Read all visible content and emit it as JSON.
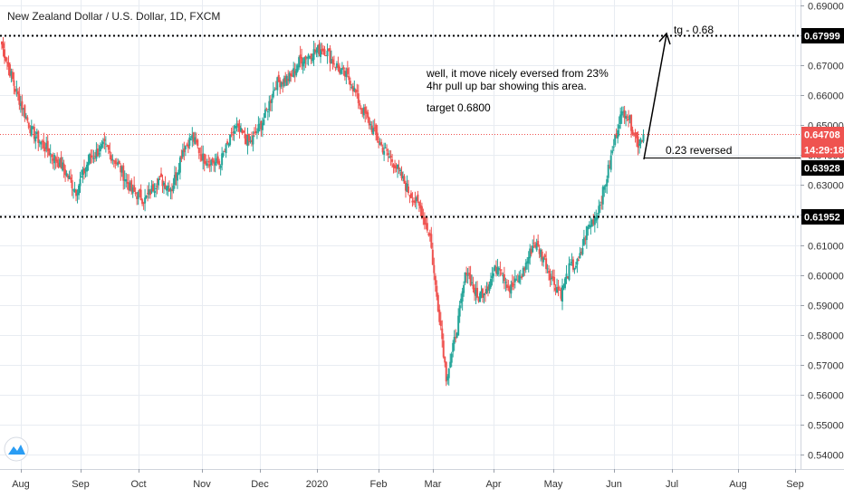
{
  "title": "New Zealand Dollar / U.S. Dollar, 1D, FXCM",
  "colors": {
    "up": "#26a69a",
    "down": "#ef5350",
    "grid": "#e8ecf2",
    "price_line": "#ef5350",
    "dark": "#000000",
    "logo": "#2a9df4"
  },
  "annotations": {
    "note_line1": "well, it move nicely eversed from 23%",
    "note_line2": "4hr pull up bar showing this area.",
    "note_line3": "target 0.6800",
    "target_label": "tg - 0.68",
    "reversed_label": "0.23 reversed"
  },
  "price_labels": {
    "resistance": "0.67999",
    "current": "0.64708",
    "countdown": "14:29:18",
    "level_023": "0.63928",
    "support": "0.61952"
  },
  "logo_icon": "tradingview-logo-icon",
  "chart_data": {
    "type": "candlestick",
    "title": "New Zealand Dollar / U.S. Dollar, 1D, FXCM",
    "y_ticks": [
      0.69,
      0.68,
      0.67,
      0.66,
      0.65,
      0.64,
      0.63,
      0.62,
      0.61,
      0.6,
      0.59,
      0.58,
      0.57,
      0.56,
      0.55,
      0.54
    ],
    "y_tick_labels": [
      "0.69000",
      "0.68000",
      "0.67000",
      "0.66000",
      "0.65000",
      "0.64000",
      "0.63000",
      "0.62000",
      "0.61000",
      "0.60000",
      "0.59000",
      "0.58000",
      "0.57000",
      "0.56000",
      "0.55000",
      "0.54000"
    ],
    "ylim": [
      0.5365,
      0.6915
    ],
    "x_labels": [
      "Aug",
      "Sep",
      "Oct",
      "Nov",
      "Dec",
      "2020",
      "Feb",
      "Mar",
      "Apr",
      "May",
      "Jun",
      "Jul",
      "Aug",
      "Sep"
    ],
    "horizontal_levels": [
      0.67999,
      0.61952
    ],
    "current_price": 0.64708,
    "reversal_level": 0.63928,
    "price_path": [
      [
        0,
        0.677
      ],
      [
        10,
        0.662
      ],
      [
        22,
        0.648
      ],
      [
        35,
        0.641
      ],
      [
        45,
        0.636
      ],
      [
        55,
        0.628
      ],
      [
        65,
        0.639
      ],
      [
        76,
        0.643
      ],
      [
        86,
        0.637
      ],
      [
        96,
        0.628
      ],
      [
        106,
        0.625
      ],
      [
        116,
        0.632
      ],
      [
        126,
        0.629
      ],
      [
        134,
        0.642
      ],
      [
        141,
        0.646
      ],
      [
        149,
        0.639
      ],
      [
        161,
        0.637
      ],
      [
        173,
        0.649
      ],
      [
        184,
        0.644
      ],
      [
        194,
        0.652
      ],
      [
        203,
        0.664
      ],
      [
        214,
        0.666
      ],
      [
        221,
        0.672
      ],
      [
        229,
        0.674
      ],
      [
        238,
        0.676
      ],
      [
        244,
        0.672
      ],
      [
        251,
        0.668
      ],
      [
        258,
        0.665
      ],
      [
        266,
        0.656
      ],
      [
        273,
        0.65
      ],
      [
        281,
        0.643
      ],
      [
        291,
        0.637
      ],
      [
        301,
        0.628
      ],
      [
        310,
        0.622
      ],
      [
        317,
        0.613
      ],
      [
        321,
        0.596
      ],
      [
        325,
        0.583
      ],
      [
        329,
        0.566
      ],
      [
        333,
        0.573
      ],
      [
        338,
        0.585
      ],
      [
        344,
        0.602
      ],
      [
        352,
        0.592
      ],
      [
        359,
        0.596
      ],
      [
        368,
        0.604
      ],
      [
        376,
        0.595
      ],
      [
        385,
        0.6
      ],
      [
        394,
        0.611
      ],
      [
        401,
        0.606
      ],
      [
        408,
        0.598
      ],
      [
        414,
        0.594
      ],
      [
        420,
        0.602
      ],
      [
        427,
        0.604
      ],
      [
        433,
        0.615
      ],
      [
        440,
        0.62
      ],
      [
        446,
        0.629
      ],
      [
        452,
        0.641
      ],
      [
        457,
        0.652
      ],
      [
        462,
        0.655
      ],
      [
        466,
        0.65
      ],
      [
        471,
        0.644
      ],
      [
        475,
        0.647
      ]
    ]
  }
}
